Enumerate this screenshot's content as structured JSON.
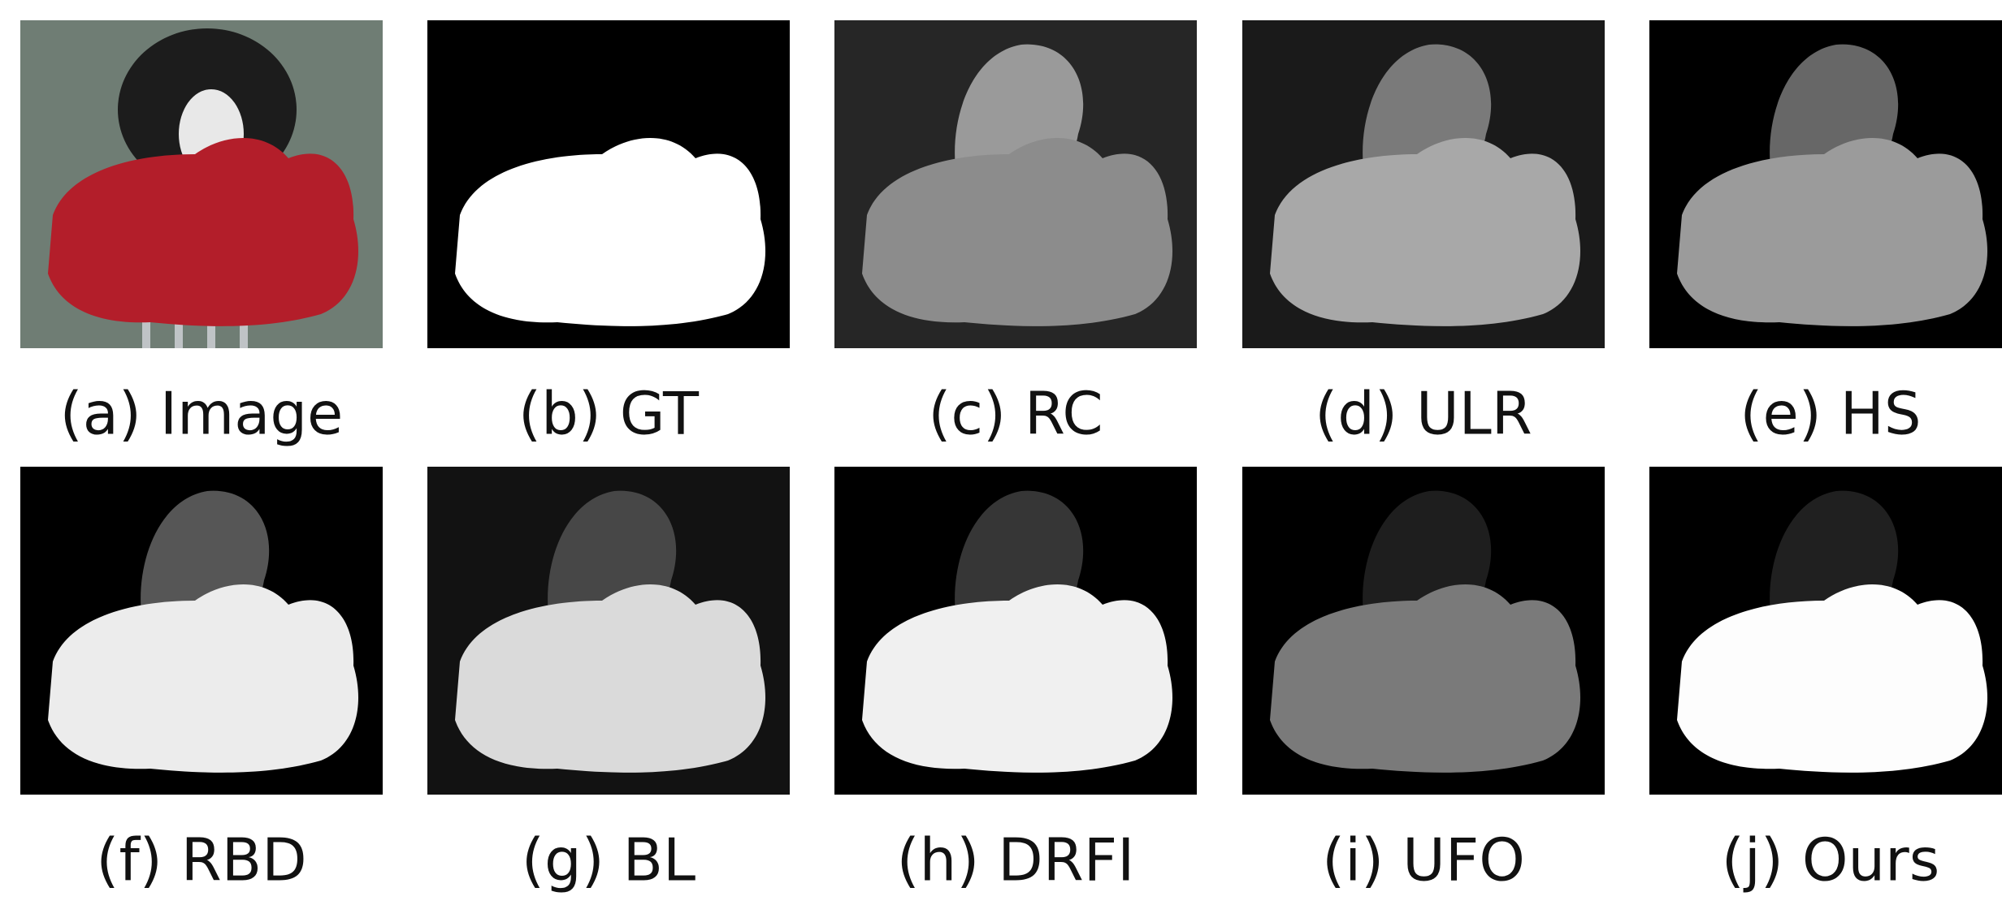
{
  "panels": [
    {
      "label": "(a) Image"
    },
    {
      "label": "(b) GT"
    },
    {
      "label": "(c) RC"
    },
    {
      "label": "(d) ULR"
    },
    {
      "label": "(e) HS"
    },
    {
      "label": "(f) RBD"
    },
    {
      "label": "(g) BL"
    },
    {
      "label": "(h) DRFI"
    },
    {
      "label": "(i) UFO"
    },
    {
      "label": "(j) Ours"
    }
  ]
}
